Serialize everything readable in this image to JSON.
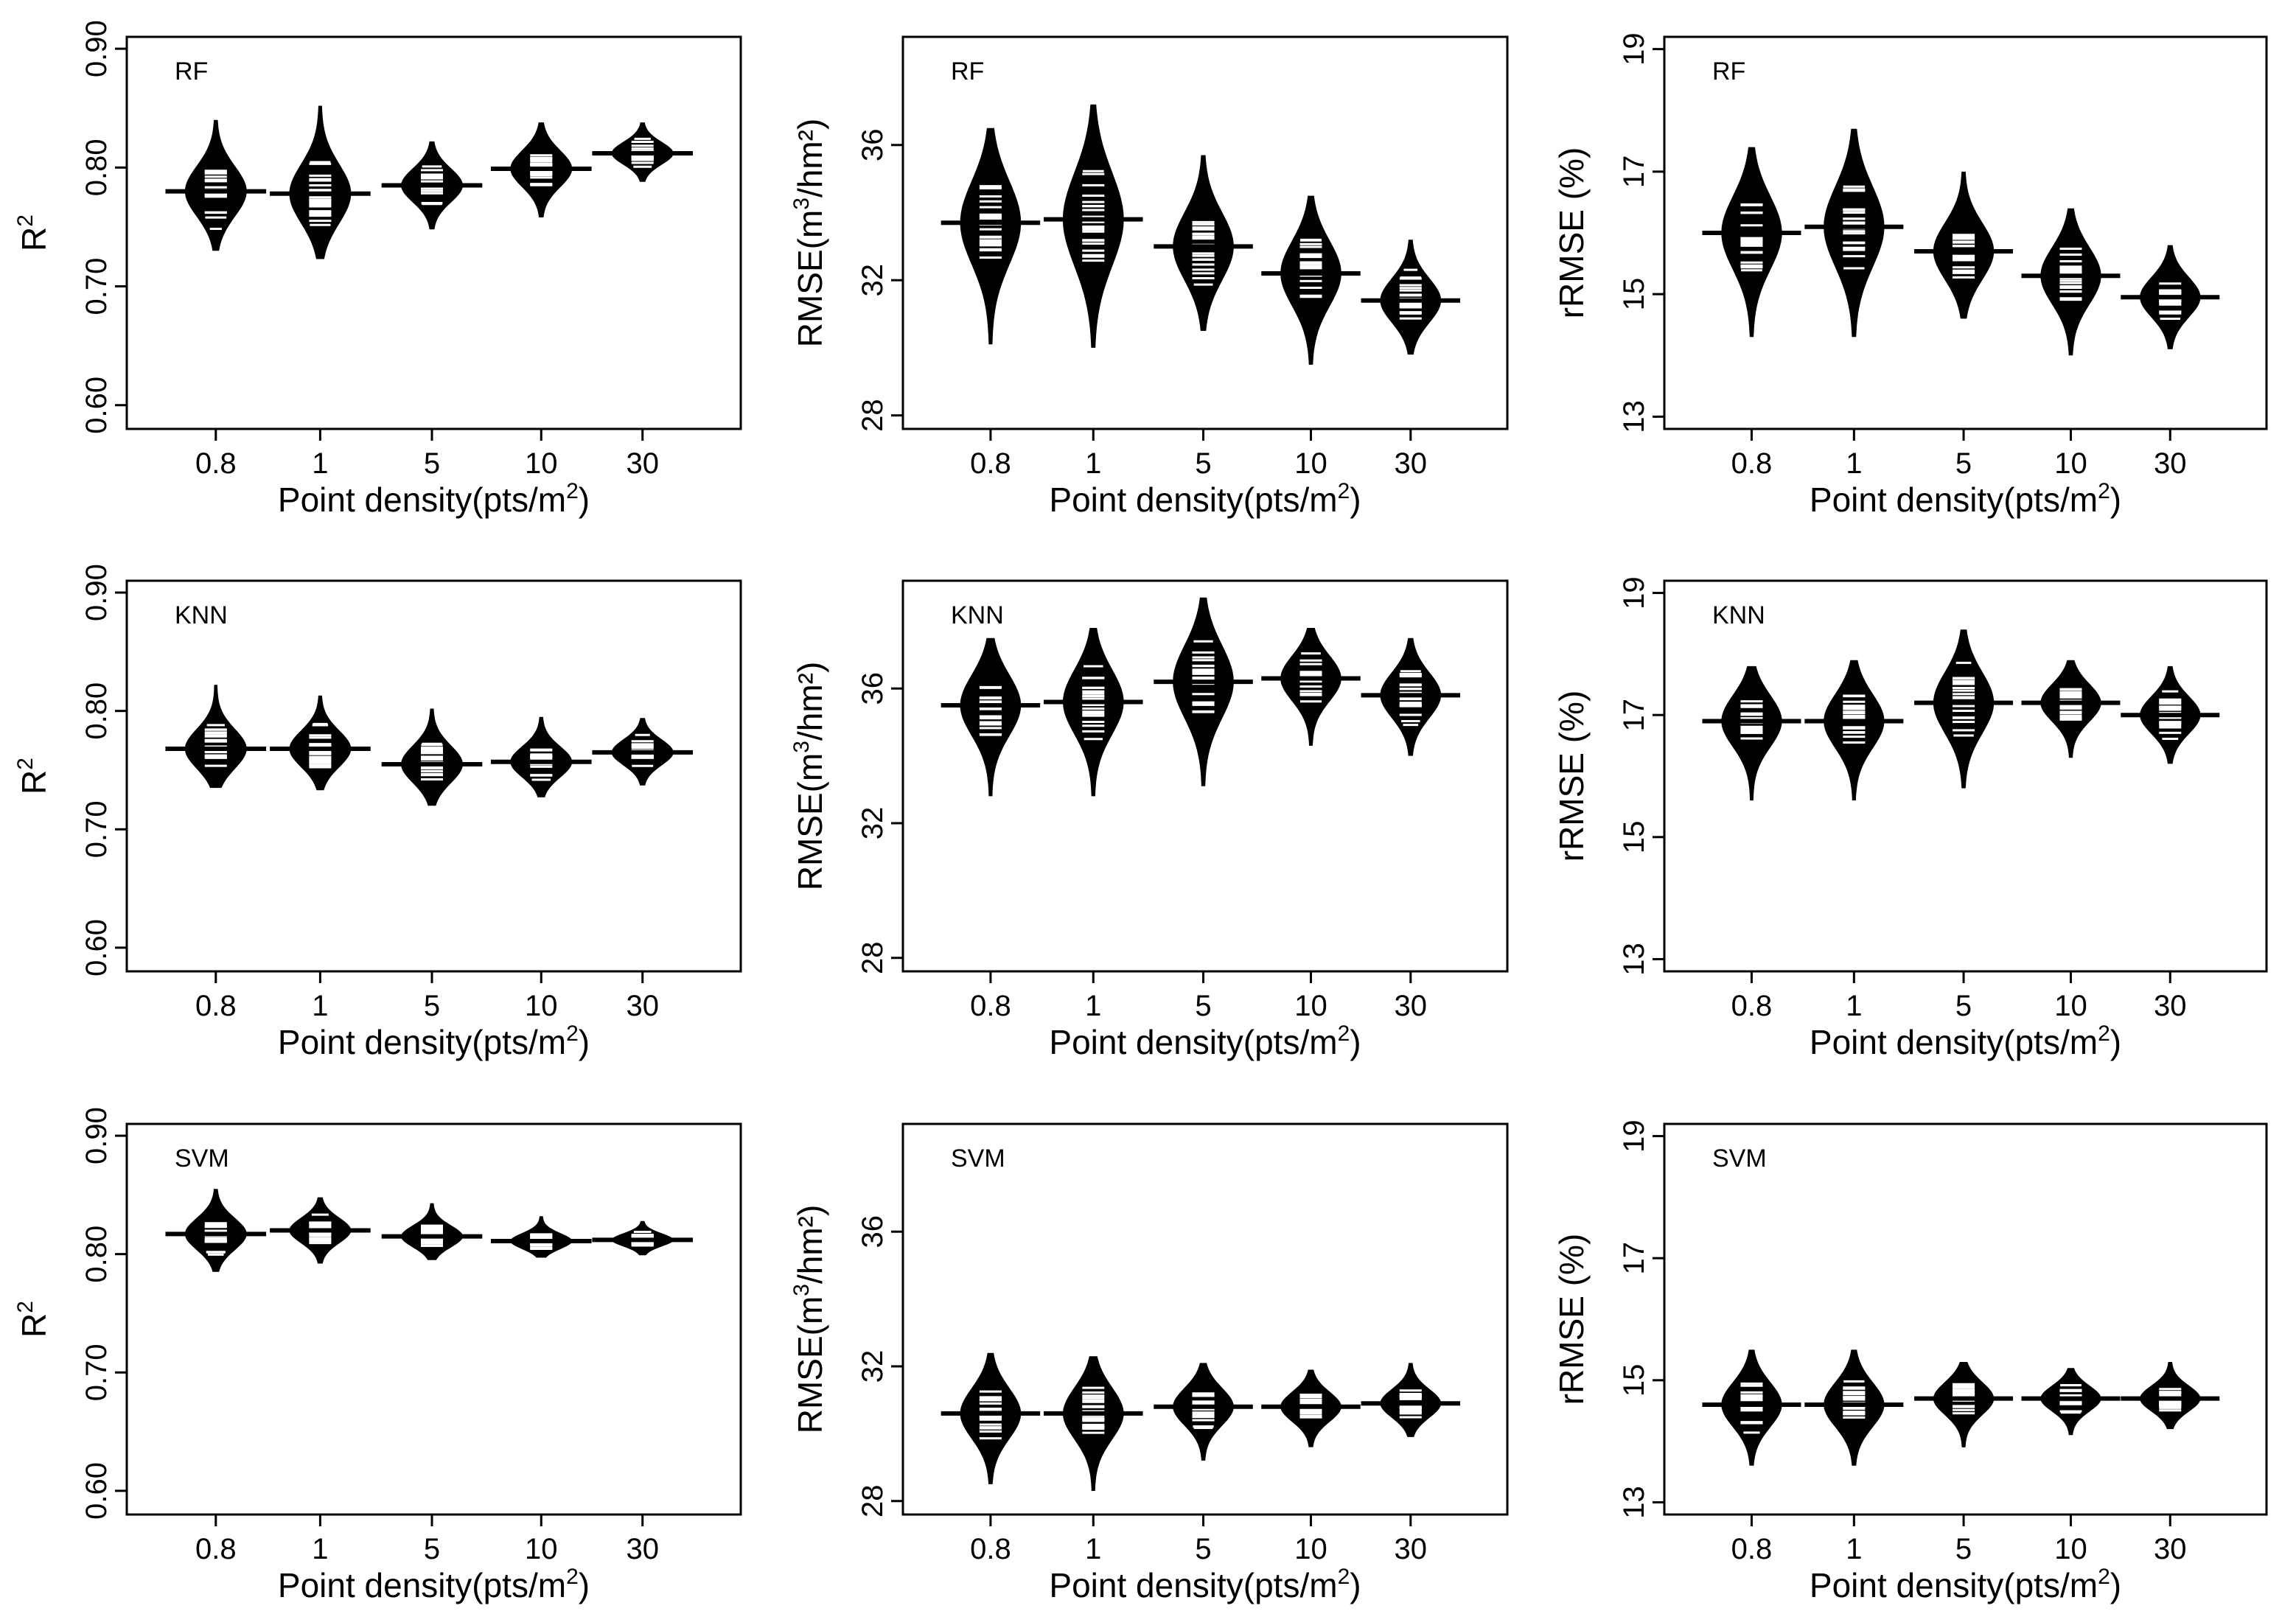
{
  "x_label": "Point density(pts/m",
  "x_label_sup": "2",
  "x_label_end": ")",
  "chart_data": [
    {
      "type": "beanplot",
      "model": "RF",
      "metric": "R2",
      "ylabel": "R",
      "ylabel_sup": "2",
      "ylabel_end": "",
      "categories": [
        "0.8",
        "1",
        "5",
        "10",
        "30"
      ],
      "ylim": [
        0.58,
        0.91
      ],
      "yticks": [
        "0.60",
        "0.70",
        "0.80",
        "0.90"
      ],
      "means": [
        0.78,
        0.778,
        0.785,
        0.799,
        0.812
      ],
      "ranges": [
        [
          0.73,
          0.84
        ],
        [
          0.723,
          0.852
        ],
        [
          0.748,
          0.822
        ],
        [
          0.758,
          0.838
        ],
        [
          0.788,
          0.838
        ]
      ]
    },
    {
      "type": "beanplot",
      "model": "RF",
      "metric": "RMSE",
      "ylabel": "RMSE(m",
      "ylabel_sup": "3",
      "ylabel_end": "/hm²)",
      "categories": [
        "0.8",
        "1",
        "5",
        "10",
        "30"
      ],
      "ylim": [
        27.6,
        39.2
      ],
      "yticks": [
        "28",
        "32",
        "36"
      ],
      "means": [
        33.7,
        33.8,
        33.0,
        32.2,
        31.4
      ],
      "ranges": [
        [
          30.1,
          36.5
        ],
        [
          30.0,
          37.2
        ],
        [
          30.5,
          35.7
        ],
        [
          29.5,
          34.5
        ],
        [
          29.8,
          33.2
        ]
      ]
    },
    {
      "type": "beanplot",
      "model": "RF",
      "metric": "rRMSE",
      "ylabel": "rRMSE (%)",
      "ylabel_sup": "",
      "ylabel_end": "",
      "categories": [
        "0.8",
        "1",
        "5",
        "10",
        "30"
      ],
      "ylim": [
        12.8,
        19.2
      ],
      "yticks": [
        "13",
        "15",
        "17",
        "19"
      ],
      "means": [
        16.0,
        16.1,
        15.7,
        15.3,
        14.95
      ],
      "ranges": [
        [
          14.3,
          17.4
        ],
        [
          14.3,
          17.7
        ],
        [
          14.6,
          17.0
        ],
        [
          14.0,
          16.4
        ],
        [
          14.1,
          15.8
        ]
      ]
    },
    {
      "type": "beanplot",
      "model": "KNN",
      "metric": "R2",
      "ylabel": "R",
      "ylabel_sup": "2",
      "ylabel_end": "",
      "categories": [
        "0.8",
        "1",
        "5",
        "10",
        "30"
      ],
      "ylim": [
        0.58,
        0.91
      ],
      "yticks": [
        "0.60",
        "0.70",
        "0.80",
        "0.90"
      ],
      "means": [
        0.768,
        0.768,
        0.755,
        0.757,
        0.765
      ],
      "ranges": [
        [
          0.735,
          0.822
        ],
        [
          0.733,
          0.813
        ],
        [
          0.72,
          0.802
        ],
        [
          0.727,
          0.795
        ],
        [
          0.737,
          0.794
        ]
      ]
    },
    {
      "type": "beanplot",
      "model": "KNN",
      "metric": "RMSE",
      "ylabel": "RMSE(m",
      "ylabel_sup": "3",
      "ylabel_end": "/hm²)",
      "categories": [
        "0.8",
        "1",
        "5",
        "10",
        "30"
      ],
      "ylim": [
        27.6,
        39.2
      ],
      "yticks": [
        "28",
        "32",
        "36"
      ],
      "means": [
        35.5,
        35.6,
        36.2,
        36.3,
        35.8
      ],
      "ranges": [
        [
          32.8,
          37.5
        ],
        [
          32.8,
          37.8
        ],
        [
          33.1,
          38.7
        ],
        [
          34.3,
          37.8
        ],
        [
          34.0,
          37.5
        ]
      ]
    },
    {
      "type": "beanplot",
      "model": "KNN",
      "metric": "rRMSE",
      "ylabel": "rRMSE (%)",
      "ylabel_sup": "",
      "ylabel_end": "",
      "categories": [
        "0.8",
        "1",
        "5",
        "10",
        "30"
      ],
      "ylim": [
        12.8,
        19.2
      ],
      "yticks": [
        "13",
        "15",
        "17",
        "19"
      ],
      "means": [
        16.9,
        16.9,
        17.2,
        17.2,
        17.0
      ],
      "ranges": [
        [
          15.6,
          17.8
        ],
        [
          15.6,
          17.9
        ],
        [
          15.8,
          18.4
        ],
        [
          16.3,
          17.9
        ],
        [
          16.2,
          17.8
        ]
      ]
    },
    {
      "type": "beanplot",
      "model": "SVM",
      "metric": "R2",
      "ylabel": "R",
      "ylabel_sup": "2",
      "ylabel_end": "",
      "categories": [
        "0.8",
        "1",
        "5",
        "10",
        "30"
      ],
      "ylim": [
        0.58,
        0.91
      ],
      "yticks": [
        "0.60",
        "0.70",
        "0.80",
        "0.90"
      ],
      "means": [
        0.817,
        0.82,
        0.815,
        0.811,
        0.812
      ],
      "ranges": [
        [
          0.785,
          0.855
        ],
        [
          0.792,
          0.848
        ],
        [
          0.795,
          0.843
        ],
        [
          0.797,
          0.832
        ],
        [
          0.799,
          0.828
        ]
      ]
    },
    {
      "type": "beanplot",
      "model": "SVM",
      "metric": "RMSE",
      "ylabel": "RMSE(m",
      "ylabel_sup": "3",
      "ylabel_end": "/hm²)",
      "categories": [
        "0.8",
        "1",
        "5",
        "10",
        "30"
      ],
      "ylim": [
        27.6,
        39.2
      ],
      "yticks": [
        "28",
        "32",
        "36"
      ],
      "means": [
        30.6,
        30.6,
        30.8,
        30.8,
        30.9
      ],
      "ranges": [
        [
          28.5,
          32.4
        ],
        [
          28.3,
          32.3
        ],
        [
          29.2,
          32.1
        ],
        [
          29.6,
          31.9
        ],
        [
          29.9,
          32.1
        ]
      ]
    },
    {
      "type": "beanplot",
      "model": "SVM",
      "metric": "rRMSE",
      "ylabel": "rRMSE (%)",
      "ylabel_sup": "",
      "ylabel_end": "",
      "categories": [
        "0.8",
        "1",
        "5",
        "10",
        "30"
      ],
      "ylim": [
        12.8,
        19.2
      ],
      "yticks": [
        "13",
        "15",
        "17",
        "19"
      ],
      "means": [
        14.6,
        14.6,
        14.7,
        14.7,
        14.7
      ],
      "ranges": [
        [
          13.6,
          15.5
        ],
        [
          13.6,
          15.5
        ],
        [
          13.9,
          15.3
        ],
        [
          14.1,
          15.2
        ],
        [
          14.2,
          15.3
        ]
      ]
    }
  ]
}
